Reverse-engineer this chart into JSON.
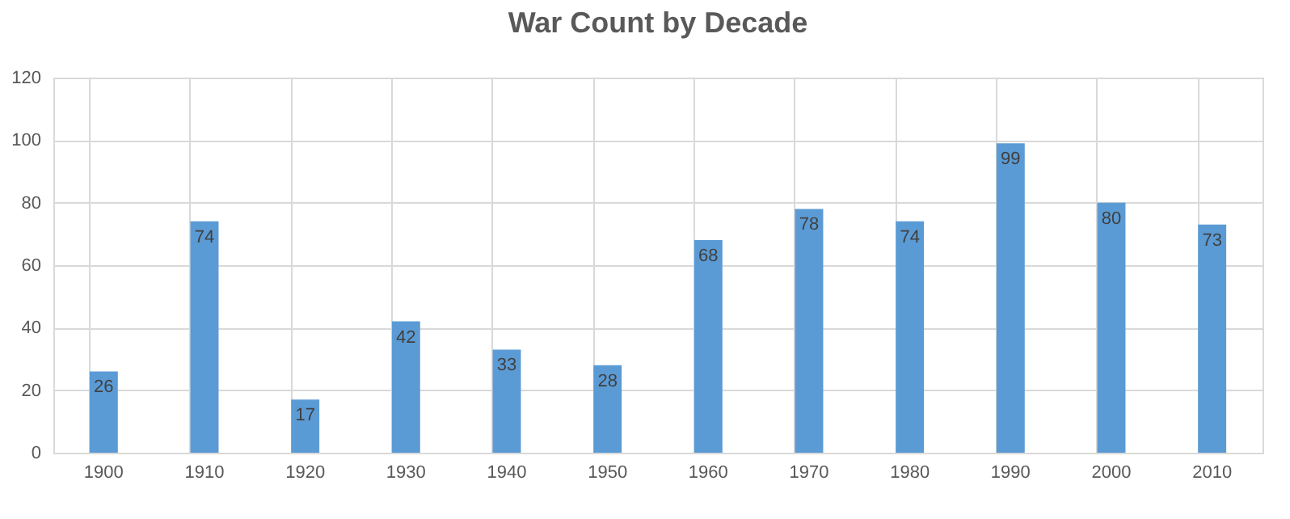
{
  "chart_data": {
    "type": "bar",
    "title": "War Count by Decade",
    "categories": [
      "1900",
      "1910",
      "1920",
      "1930",
      "1940",
      "1950",
      "1960",
      "1970",
      "1980",
      "1990",
      "2000",
      "2010"
    ],
    "values": [
      26,
      74,
      17,
      42,
      33,
      28,
      68,
      78,
      74,
      99,
      80,
      73
    ],
    "color": "#5b9bd5",
    "ylim": [
      0,
      120
    ],
    "yticks": [
      0,
      20,
      40,
      60,
      80,
      100,
      120
    ],
    "grid": true,
    "data_labels": true
  }
}
